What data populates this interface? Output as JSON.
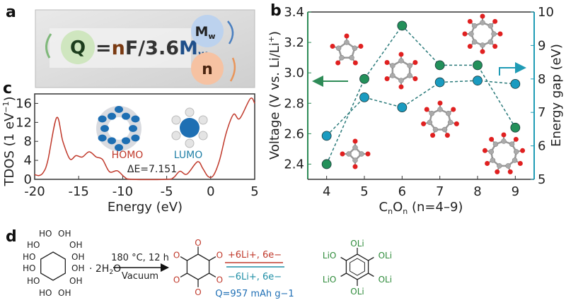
{
  "panel_a": {
    "label": "a",
    "q": "Q",
    "formula_eq": "=",
    "formula_n": "n",
    "formula_mid": "F/3.6",
    "formula_m": "M",
    "formula_sub": "w",
    "mw_circle": "M",
    "mw_sub": "w",
    "n_circle": "n",
    "colors": {
      "q": "#cfe6bf",
      "mw": "#bcd2ee",
      "n": "#f6c2a2",
      "n_text": "#7a3a12",
      "m_text": "#1f4f8a"
    }
  },
  "chart_data": [
    {
      "panel_label": "b",
      "type": "scatter",
      "xlabel": "CnOn (n=4–9)",
      "xlabel_parts": {
        "c": "C",
        "sub1": "n",
        "o": "O",
        "sub2": "n",
        "rest": " (n=4–9)"
      },
      "ylabel": "Voltage (V vs. Li/Li+)",
      "ylabel_parts": {
        "main": "Voltage (V vs. Li/Li",
        "sup": "+",
        "end": ")"
      },
      "y2label": "Energy gap (eV)",
      "xlim": [
        3.5,
        9.5
      ],
      "ylim": [
        2.3,
        3.4
      ],
      "y2lim": [
        5,
        10
      ],
      "x": [
        4,
        5,
        6,
        7,
        8,
        9
      ],
      "xticks": [
        "4",
        "5",
        "6",
        "7",
        "8",
        "9"
      ],
      "yticks": [
        "2.4",
        "2.6",
        "2.8",
        "3.0",
        "3.2",
        "3.4"
      ],
      "y2ticks": [
        "5",
        "6",
        "7",
        "8",
        "9",
        "10"
      ],
      "series": [
        {
          "axis": "left",
          "values": [
            2.4,
            2.96,
            3.31,
            3.05,
            3.05,
            2.64
          ],
          "color": "#23905a"
        },
        {
          "axis": "right",
          "values": [
            6.3,
            7.45,
            7.15,
            7.9,
            7.95,
            7.85
          ],
          "color": "#1a9bc0"
        }
      ],
      "grid": false,
      "axis_colors": {
        "left": "#2e8b57",
        "right": "#1f9bb5"
      }
    },
    {
      "panel_label": "c",
      "type": "line",
      "xlabel": "Energy (eV)",
      "ylabel": "TDOS (1 eV−1)",
      "ylabel_parts": {
        "main": "TDOS (1 eV",
        "sup": "−1",
        "end": ")"
      },
      "xlim": [
        -20,
        5
      ],
      "ylim": [
        0,
        18
      ],
      "xticks": [
        "-20",
        "-15",
        "-10",
        "-5",
        "0",
        "5"
      ],
      "yticks": [
        "0",
        "4",
        "8",
        "12",
        "16"
      ],
      "series": [
        {
          "color": "#c0392b",
          "x": [
            -20,
            -19.5,
            -19,
            -18.5,
            -17.5,
            -16.8,
            -16,
            -15.3,
            -14.6,
            -13.8,
            -13,
            -12.3,
            -11.5,
            -10.6,
            -9.8,
            -9,
            -5,
            -4.2,
            -3.5,
            -2.7,
            -1.5,
            -0.9,
            -0.3,
            0.3,
            1,
            1.8,
            2.6,
            3.3,
            4.5,
            5
          ],
          "y": [
            1,
            0.8,
            1.5,
            4,
            13,
            8,
            4.3,
            5,
            4.7,
            5.8,
            4.7,
            4.2,
            1.6,
            1.8,
            0.5,
            0,
            0,
            0.4,
            1.7,
            1.1,
            3.7,
            2.3,
            0.6,
            0.8,
            4,
            10,
            13.7,
            12.8,
            17,
            16
          ]
        }
      ],
      "annotations": {
        "homo": "HOMO",
        "lumo": "LUMO",
        "gap": "ΔE=7.151"
      },
      "annotation_colors": {
        "homo": "#c0392b",
        "lumo": "#1f7fa6"
      }
    }
  ],
  "panel_d": {
    "label": "d",
    "inositol_groups": [
      "HO",
      "OH",
      "HO",
      "OH",
      "HO",
      "HO",
      "OH",
      "OH",
      "HO",
      "OH",
      "HO",
      "OH"
    ],
    "hydrate": "· 2H",
    "hydrate_sub": "2",
    "hydrate_end": "O",
    "condition_top": "180 °C, 12 h",
    "condition_bottom": "Vacuum",
    "ketone_o": "O",
    "forward": "+6Li+, 6e−",
    "reverse": "−6Li+, 6e−",
    "capacity": "Q=957 mAh g−1",
    "lithium_groups": [
      "OLi",
      "LiO",
      "OLi",
      "LiO",
      "OLi",
      "OLi"
    ],
    "colors": {
      "ketone": "#c0392b",
      "forward": "#c0392b",
      "reverse": "#1f8fa6",
      "capacity": "#1f6fb5",
      "li": "#2e8b3a"
    }
  }
}
